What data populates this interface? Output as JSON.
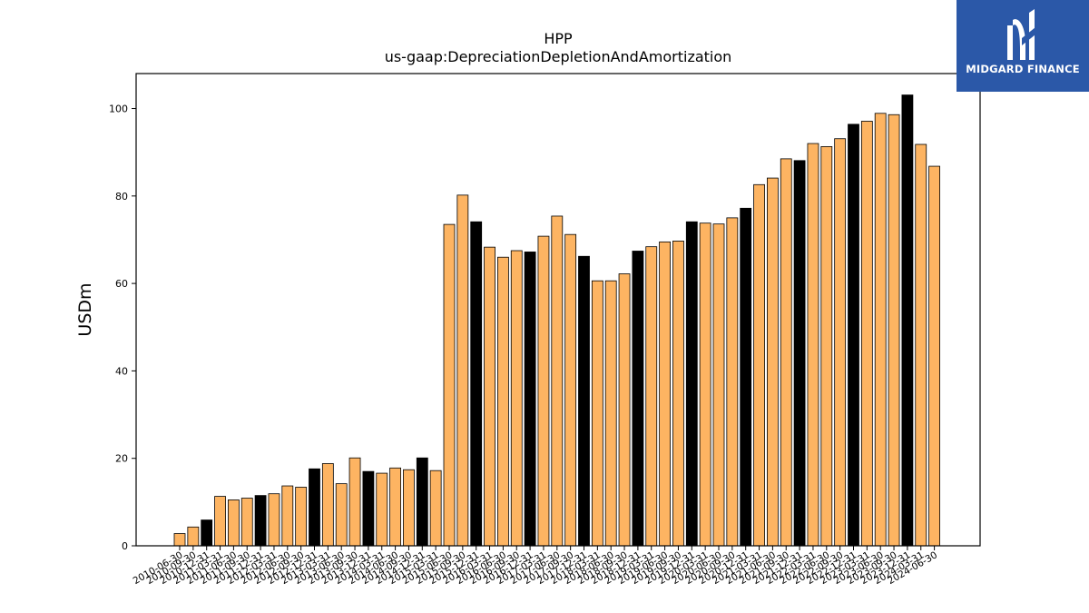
{
  "logo": {
    "text": "MIDGARD FINANCE",
    "color": "#2b58a8"
  },
  "chart_data": {
    "type": "bar",
    "title": "HPP",
    "subtitle": "us-gaap:DepreciationDepletionAndAmortization",
    "ylabel": "USDm",
    "xlabel": "",
    "ylim": [
      0,
      108
    ],
    "yticks": [
      0,
      20,
      40,
      60,
      80,
      100
    ],
    "grid": false,
    "colors": {
      "quarter": "#fdb462",
      "annual": "#000000"
    },
    "categories": [
      "2010-06-30",
      "2010-09-30",
      "2010-12-31",
      "2011-03-31",
      "2011-06-30",
      "2011-09-30",
      "2011-12-31",
      "2012-03-31",
      "2012-06-30",
      "2012-09-30",
      "2012-12-31",
      "2013-03-31",
      "2013-06-30",
      "2013-09-30",
      "2013-12-31",
      "2014-03-31",
      "2014-06-30",
      "2014-09-30",
      "2014-12-31",
      "2015-03-31",
      "2015-06-30",
      "2015-09-30",
      "2015-12-31",
      "2016-03-31",
      "2016-06-30",
      "2016-09-30",
      "2016-12-31",
      "2017-03-31",
      "2017-06-30",
      "2017-09-30",
      "2017-12-31",
      "2018-03-31",
      "2018-06-30",
      "2018-09-30",
      "2018-12-31",
      "2019-03-31",
      "2019-06-30",
      "2019-09-30",
      "2019-12-31",
      "2020-03-31",
      "2020-06-30",
      "2020-09-30",
      "2020-12-31",
      "2021-03-31",
      "2021-06-30",
      "2021-09-30",
      "2021-12-31",
      "2022-03-31",
      "2022-06-30",
      "2022-09-30",
      "2022-12-31",
      "2023-03-31",
      "2023-06-30",
      "2023-09-30",
      "2023-12-31",
      "2024-03-31",
      "2024-06-30"
    ],
    "values": [
      2.8,
      4.3,
      5.9,
      11.3,
      10.5,
      10.9,
      11.5,
      11.9,
      13.7,
      13.4,
      17.6,
      18.8,
      14.2,
      20.1,
      17.0,
      16.6,
      17.8,
      17.4,
      20.1,
      17.2,
      73.5,
      80.2,
      74.1,
      68.3,
      66.0,
      67.5,
      67.2,
      70.8,
      75.4,
      71.2,
      66.2,
      60.6,
      60.6,
      62.2,
      67.4,
      68.4,
      69.5,
      69.7,
      74.1,
      73.8,
      73.6,
      75.0,
      77.2,
      82.6,
      84.1,
      88.5,
      88.1,
      92.0,
      91.3,
      93.1,
      96.4,
      97.1,
      98.9,
      98.6,
      103.1,
      91.8,
      86.8
    ],
    "annual": [
      false,
      false,
      true,
      false,
      false,
      false,
      true,
      false,
      false,
      false,
      true,
      false,
      false,
      false,
      true,
      false,
      false,
      false,
      true,
      false,
      false,
      false,
      true,
      false,
      false,
      false,
      true,
      false,
      false,
      false,
      true,
      false,
      false,
      false,
      true,
      false,
      false,
      false,
      true,
      false,
      false,
      false,
      true,
      false,
      false,
      false,
      true,
      false,
      false,
      false,
      true,
      false,
      false,
      false,
      true,
      false,
      false
    ]
  }
}
